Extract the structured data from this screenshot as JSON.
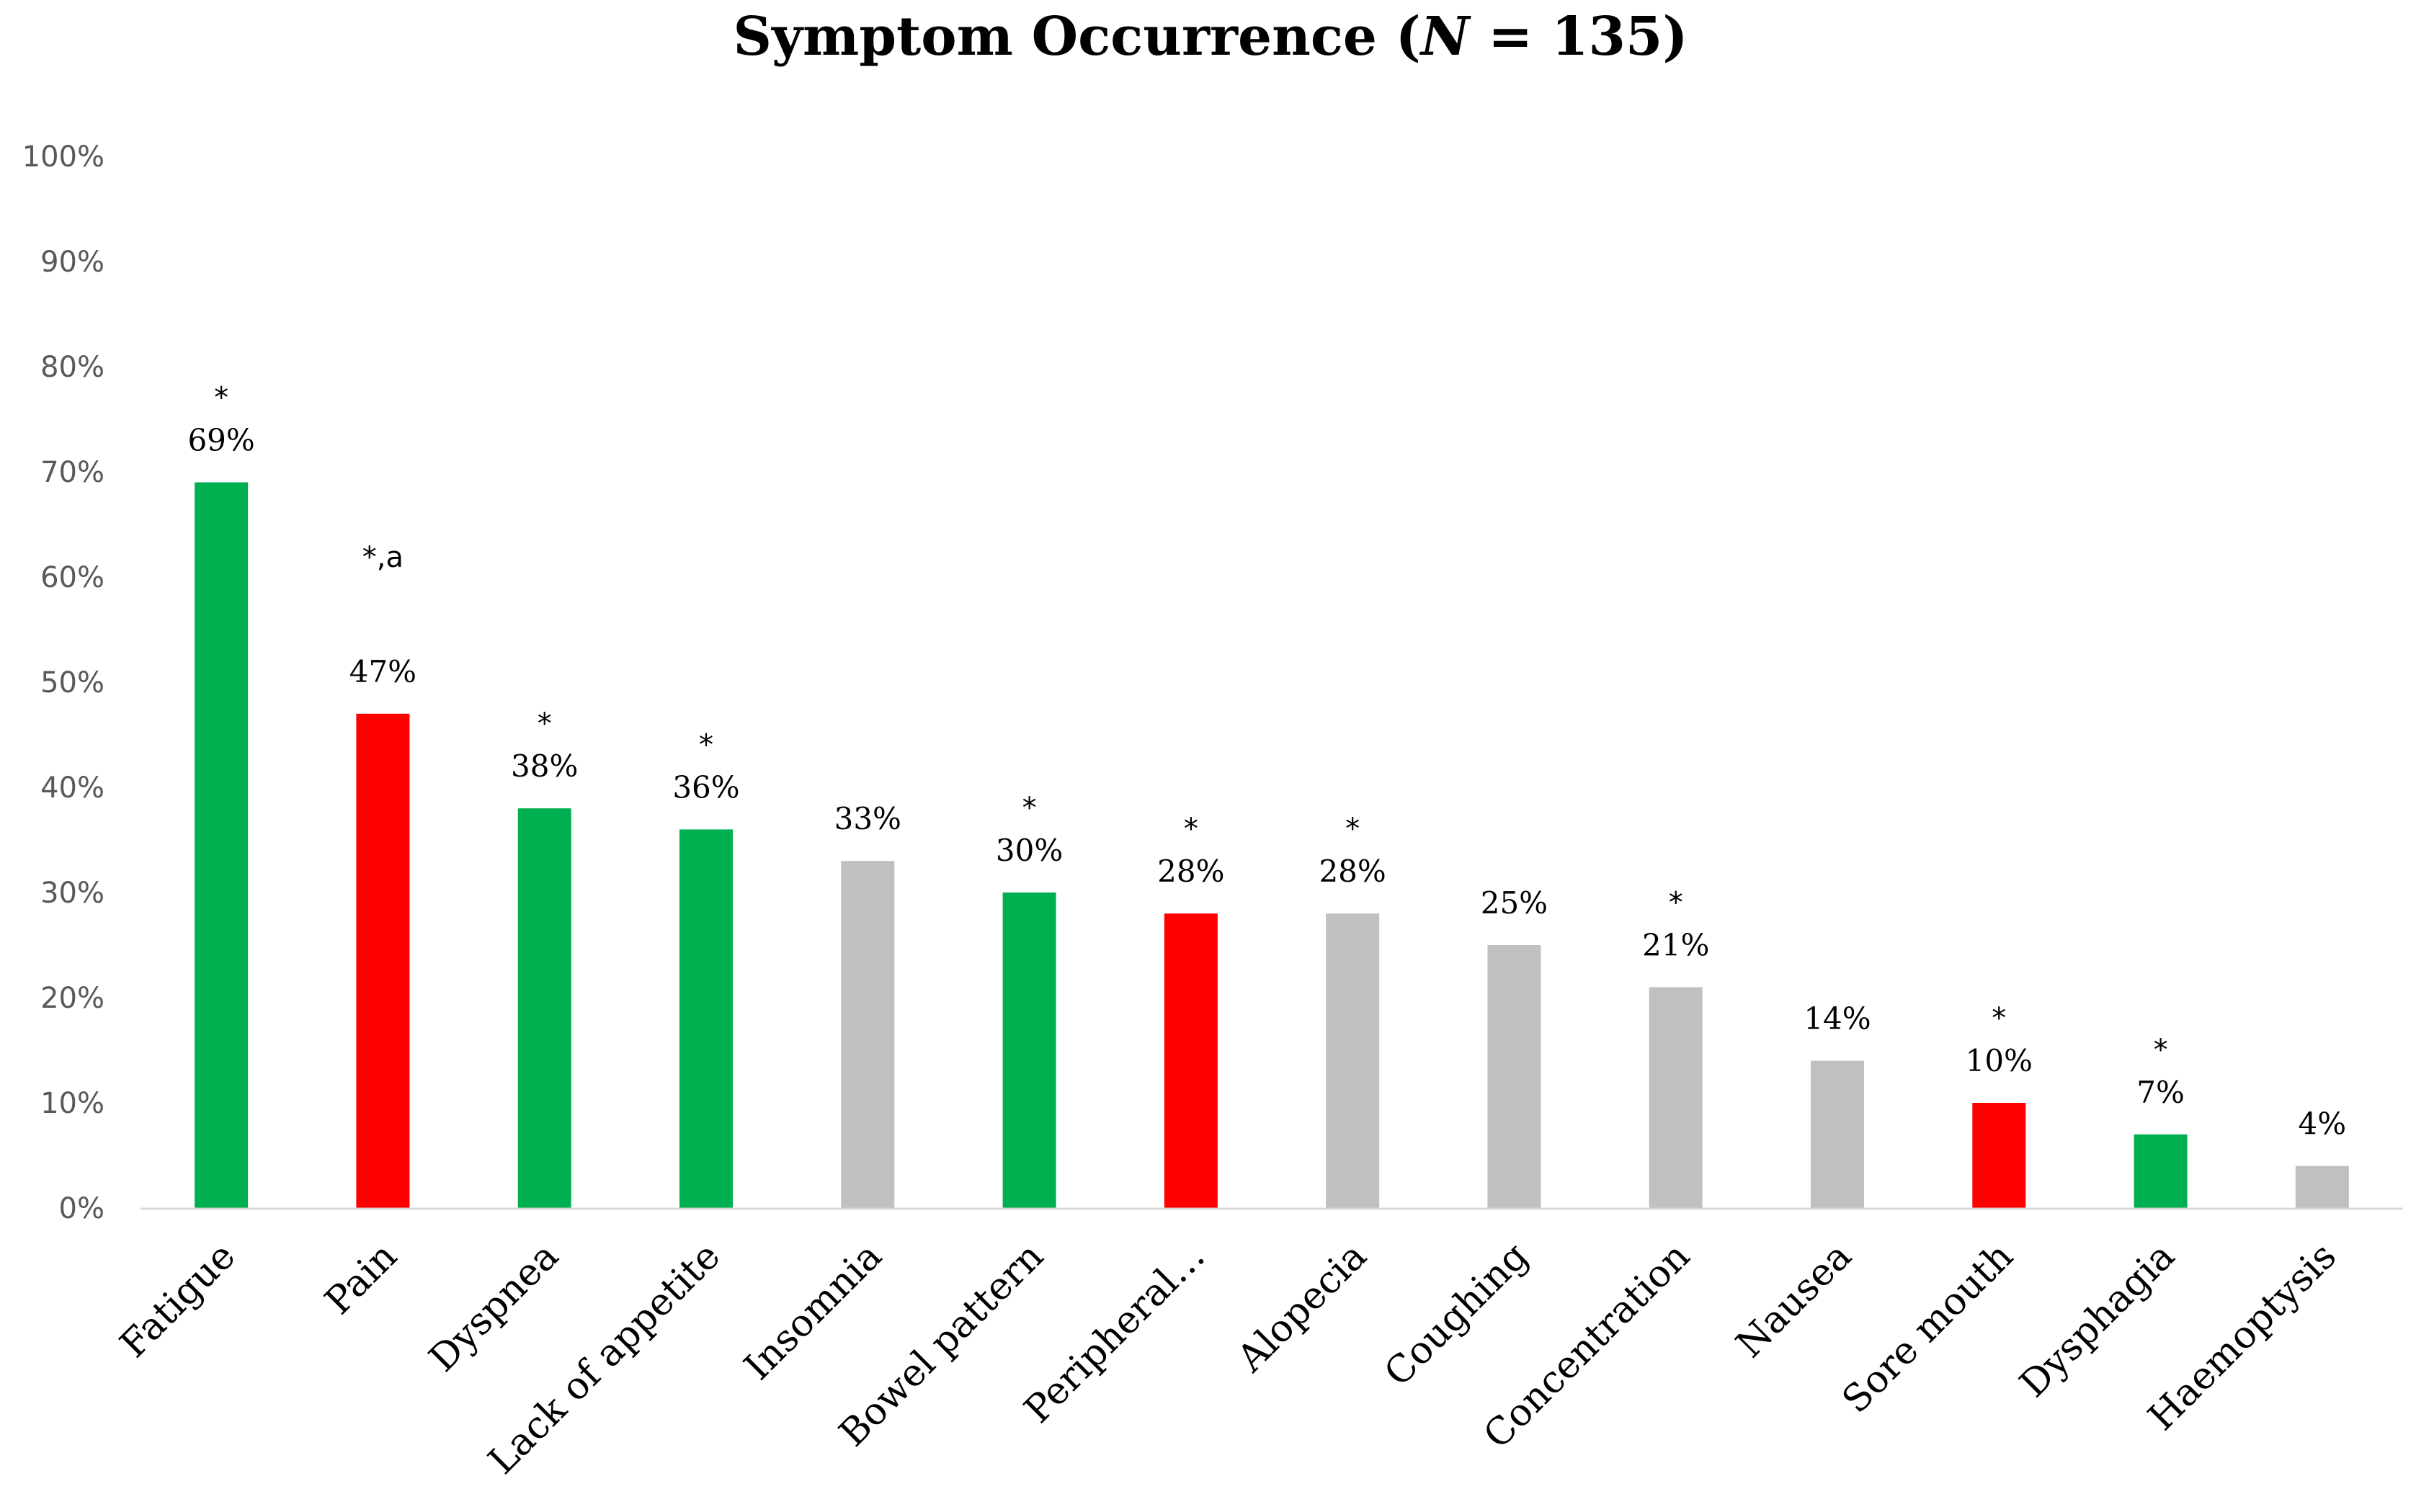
{
  "chart_data": {
    "type": "bar",
    "title": "Symptom Occurrence (N = 135)",
    "title_parts": {
      "prefix": "Symptom Occurrence (",
      "italic": "N",
      "suffix": " = 135)"
    },
    "xlabel": "",
    "ylabel": "",
    "ylim": [
      0,
      100
    ],
    "yticks": [
      0,
      10,
      20,
      30,
      40,
      50,
      60,
      70,
      80,
      90,
      100
    ],
    "ytick_labels": [
      "0%",
      "10%",
      "20%",
      "30%",
      "40%",
      "50%",
      "60%",
      "70%",
      "80%",
      "90%",
      "100%"
    ],
    "grid": false,
    "legend": "none",
    "categories": [
      "Fatigue",
      "Pain",
      "Dyspnea",
      "Lack of appetite",
      "Insomnia",
      "Bowel pattern",
      "Peripheral…",
      "Alopecia",
      "Coughing",
      "Concentration",
      "Nausea",
      "Sore mouth",
      "Dysphagia",
      "Haemoptysis"
    ],
    "values": [
      69,
      47,
      38,
      36,
      33,
      30,
      28,
      28,
      25,
      21,
      14,
      10,
      7,
      4
    ],
    "value_labels": [
      "69%",
      "47%",
      "38%",
      "36%",
      "33%",
      "30%",
      "28%",
      "28%",
      "25%",
      "21%",
      "14%",
      "10%",
      "7%",
      "4%"
    ],
    "annotations": [
      "*",
      "*,a",
      "*",
      "*",
      "",
      "*",
      "*",
      "*",
      "",
      "*",
      "",
      "*",
      "*",
      ""
    ],
    "bar_colors": [
      "#00b050",
      "#ff0000",
      "#00b050",
      "#00b050",
      "#c0c0c0",
      "#00b050",
      "#ff0000",
      "#c0c0c0",
      "#c0c0c0",
      "#c0c0c0",
      "#c0c0c0",
      "#ff0000",
      "#00b050",
      "#c0c0c0"
    ],
    "axis_color": "#d9d9d9"
  }
}
